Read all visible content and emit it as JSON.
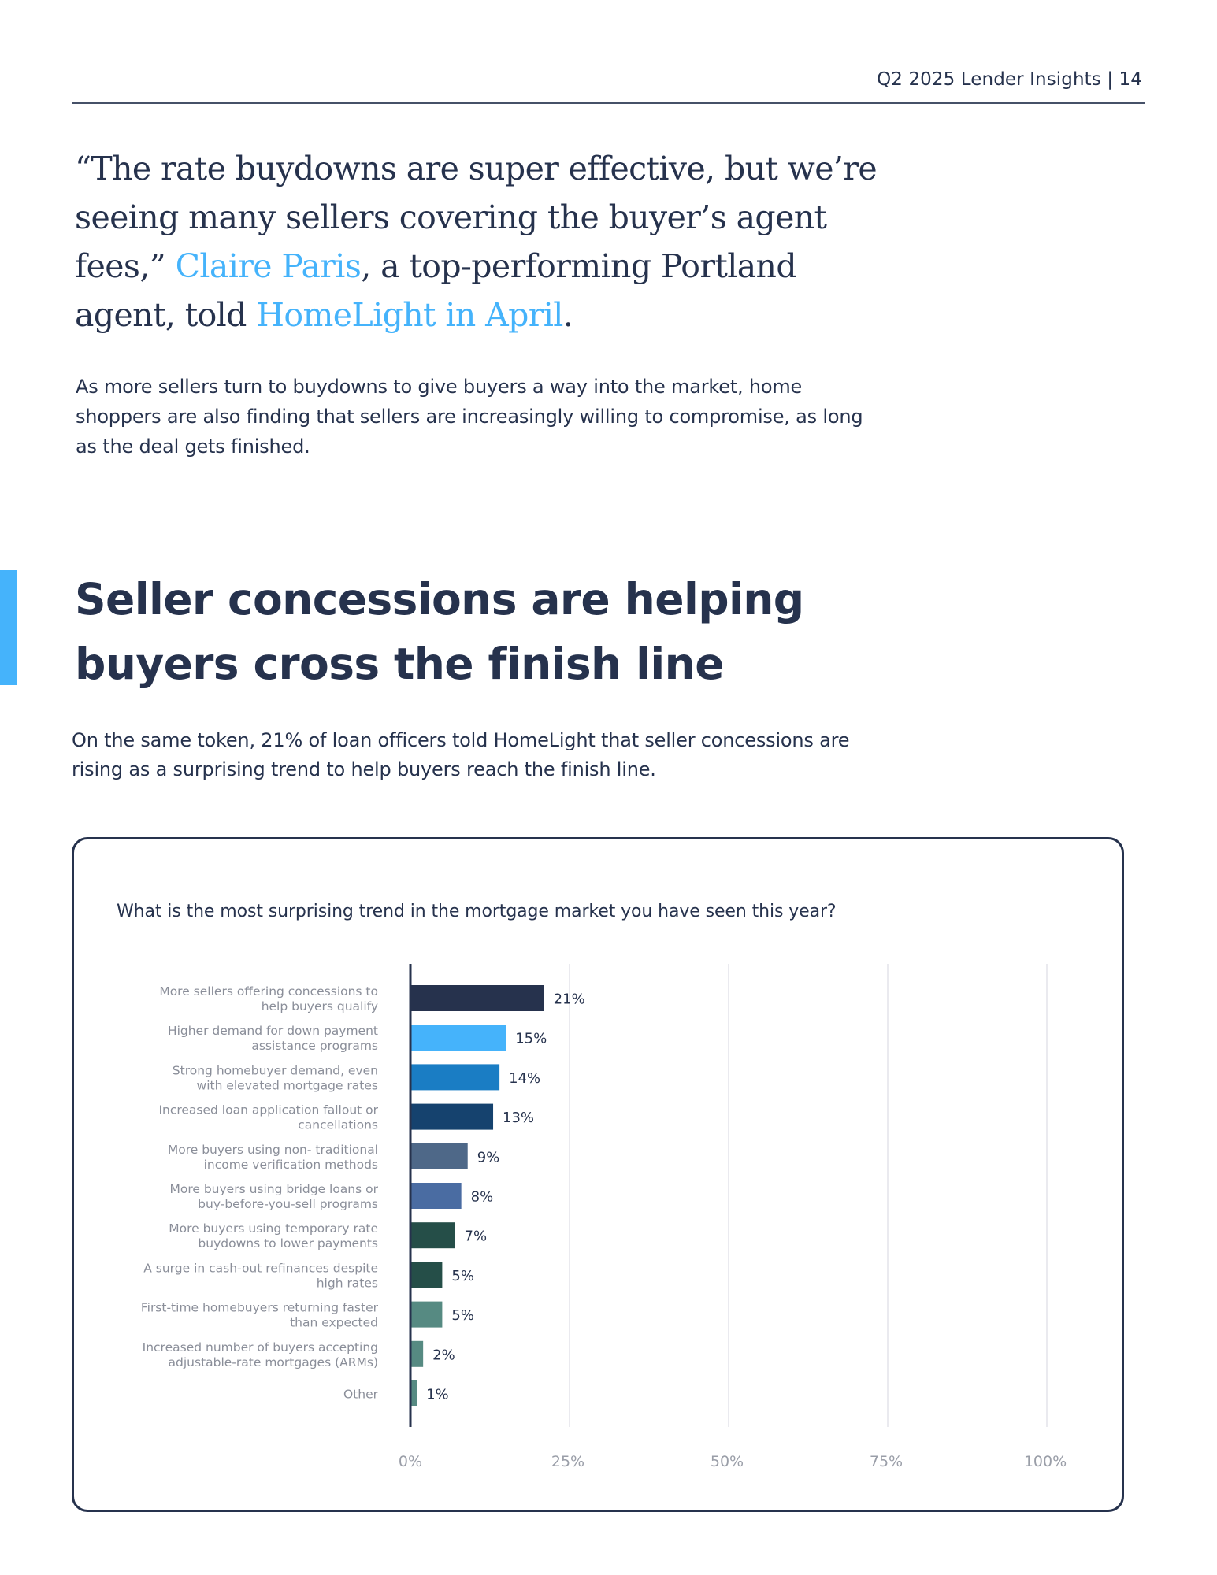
{
  "header": {
    "report_title": "Q2 2025 Lender Insights | 14"
  },
  "quote": {
    "text_1": "“The rate buydowns are super effective, but we’re seeing many sellers covering the buyer’s agent fees,” ",
    "link_1": "Claire Paris",
    "text_2": ", a top-performing Portland agent, told ",
    "link_2": "HomeLight in April",
    "text_3": "."
  },
  "body_paragraph": "As more sellers turn to buydowns to give buyers a way into the market, home shoppers are also finding that sellers are increasingly willing to compromise, as long as the deal gets finished.",
  "section": {
    "title": "Seller concessions are helping buyers cross the finish line",
    "paragraph": "On the same token, 21% of loan officers told HomeLight that seller concessions are rising as a surprising trend to help buyers reach the finish line.",
    "accent_color": "#45b3fb"
  },
  "chart_data": {
    "type": "bar",
    "orientation": "horizontal",
    "title": "What is the most surprising trend in the mortgage market you have seen this year?",
    "xlabel": "",
    "ylabel": "",
    "xlim": [
      0,
      100
    ],
    "x_ticks": [
      "0%",
      "25%",
      "50%",
      "75%",
      "100%"
    ],
    "x_tick_values": [
      0,
      25,
      50,
      75,
      100
    ],
    "grid": "vertical",
    "legend": "none",
    "categories": [
      [
        "More sellers offering concessions to",
        "help buyers qualify"
      ],
      [
        "Higher demand for down payment",
        "assistance programs"
      ],
      [
        "Strong homebuyer demand, even",
        "with elevated mortgage rates"
      ],
      [
        "Increased loan application fallout or",
        "cancellations"
      ],
      [
        "More buyers using non- traditional",
        "income verification methods"
      ],
      [
        "More buyers using bridge loans or",
        "buy-before-you-sell programs"
      ],
      [
        "More buyers using temporary rate",
        "buydowns to lower payments"
      ],
      [
        "A surge in cash-out refinances despite",
        "high rates"
      ],
      [
        "First-time homebuyers returning faster",
        "than expected"
      ],
      [
        "Increased number of buyers accepting",
        "adjustable-rate mortgages (ARMs)"
      ],
      [
        "Other"
      ]
    ],
    "values": [
      21,
      15,
      14,
      13,
      9,
      8,
      7,
      5,
      5,
      2,
      1
    ],
    "value_labels": [
      "21%",
      "15%",
      "14%",
      "13%",
      "9%",
      "8%",
      "7%",
      "5%",
      "5%",
      "2%",
      "1%"
    ],
    "colors": [
      "#26324d",
      "#45b3fb",
      "#1a7dc4",
      "#15426e",
      "#4e6888",
      "#4a6ca2",
      "#254e48",
      "#254e48",
      "#568a82",
      "#568a82",
      "#568a82"
    ]
  }
}
